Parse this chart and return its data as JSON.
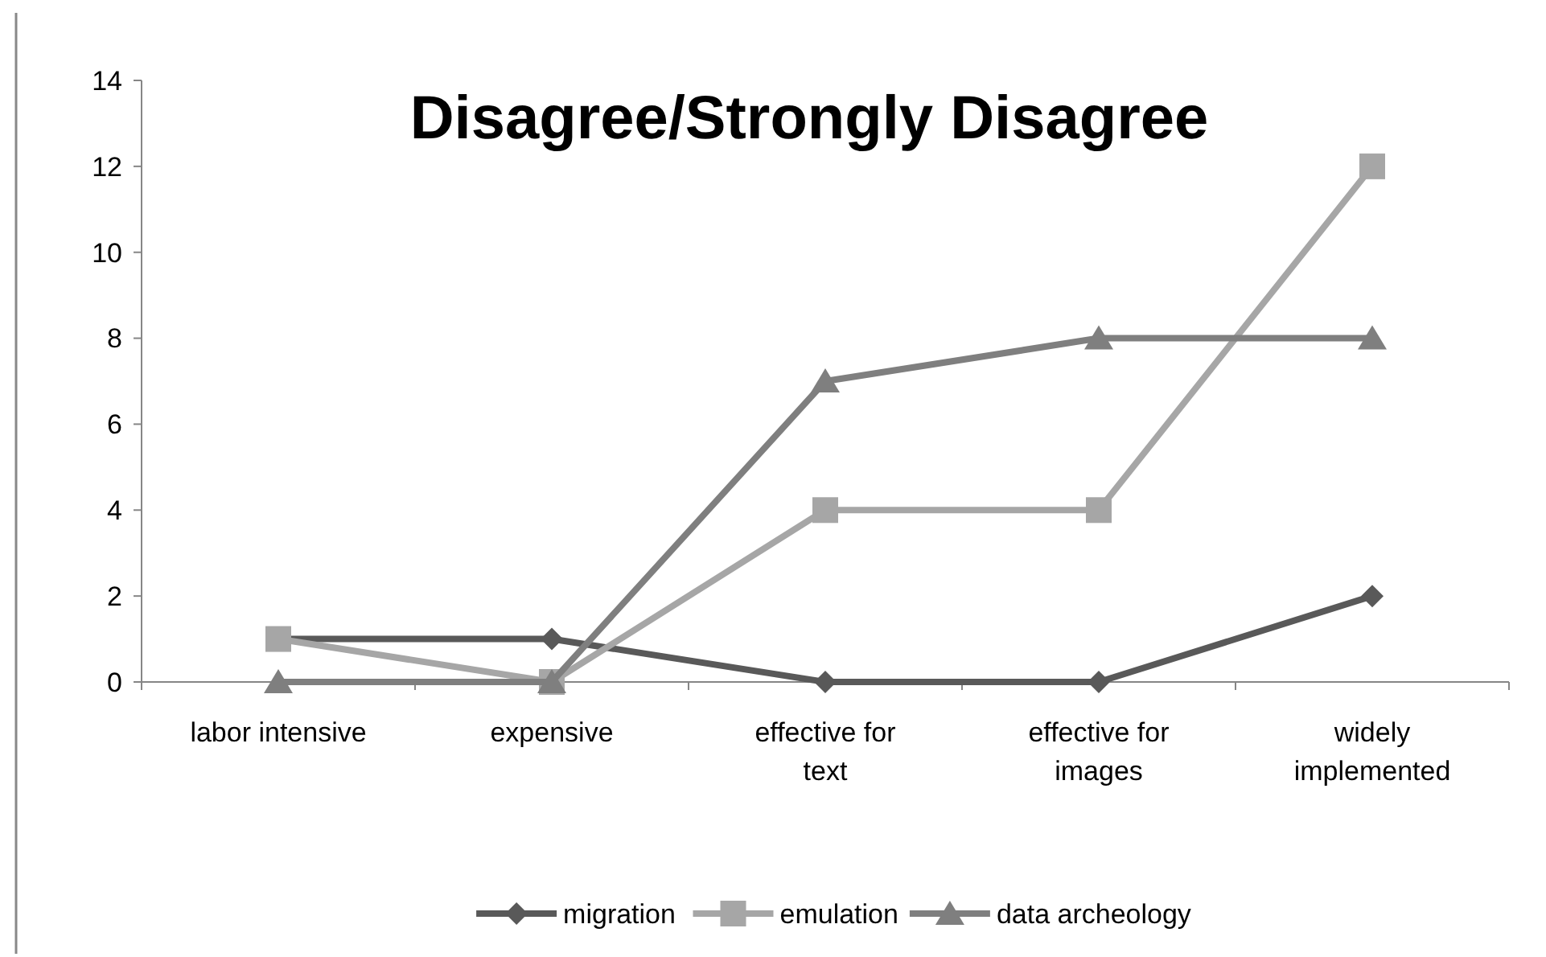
{
  "chart_data": {
    "type": "line",
    "title": "Disagree/Strongly Disagree",
    "categories": [
      "labor intensive",
      "expensive",
      "effective for text",
      "effective for images",
      "widely implemented"
    ],
    "series": [
      {
        "name": "migration",
        "color": "#595959",
        "marker": "diamond",
        "values": [
          1,
          1,
          0,
          0,
          2
        ]
      },
      {
        "name": "emulation",
        "color": "#a6a6a6",
        "marker": "square",
        "values": [
          1,
          0,
          4,
          4,
          12
        ]
      },
      {
        "name": "data archeology",
        "color": "#7f7f7f",
        "marker": "triangle",
        "values": [
          0,
          0,
          7,
          8,
          8
        ]
      }
    ],
    "ylim": [
      0,
      14
    ],
    "yticks": [
      0,
      2,
      4,
      6,
      8,
      10,
      12,
      14
    ],
    "grid": false,
    "legend": "bottom",
    "line_style": "solid"
  }
}
